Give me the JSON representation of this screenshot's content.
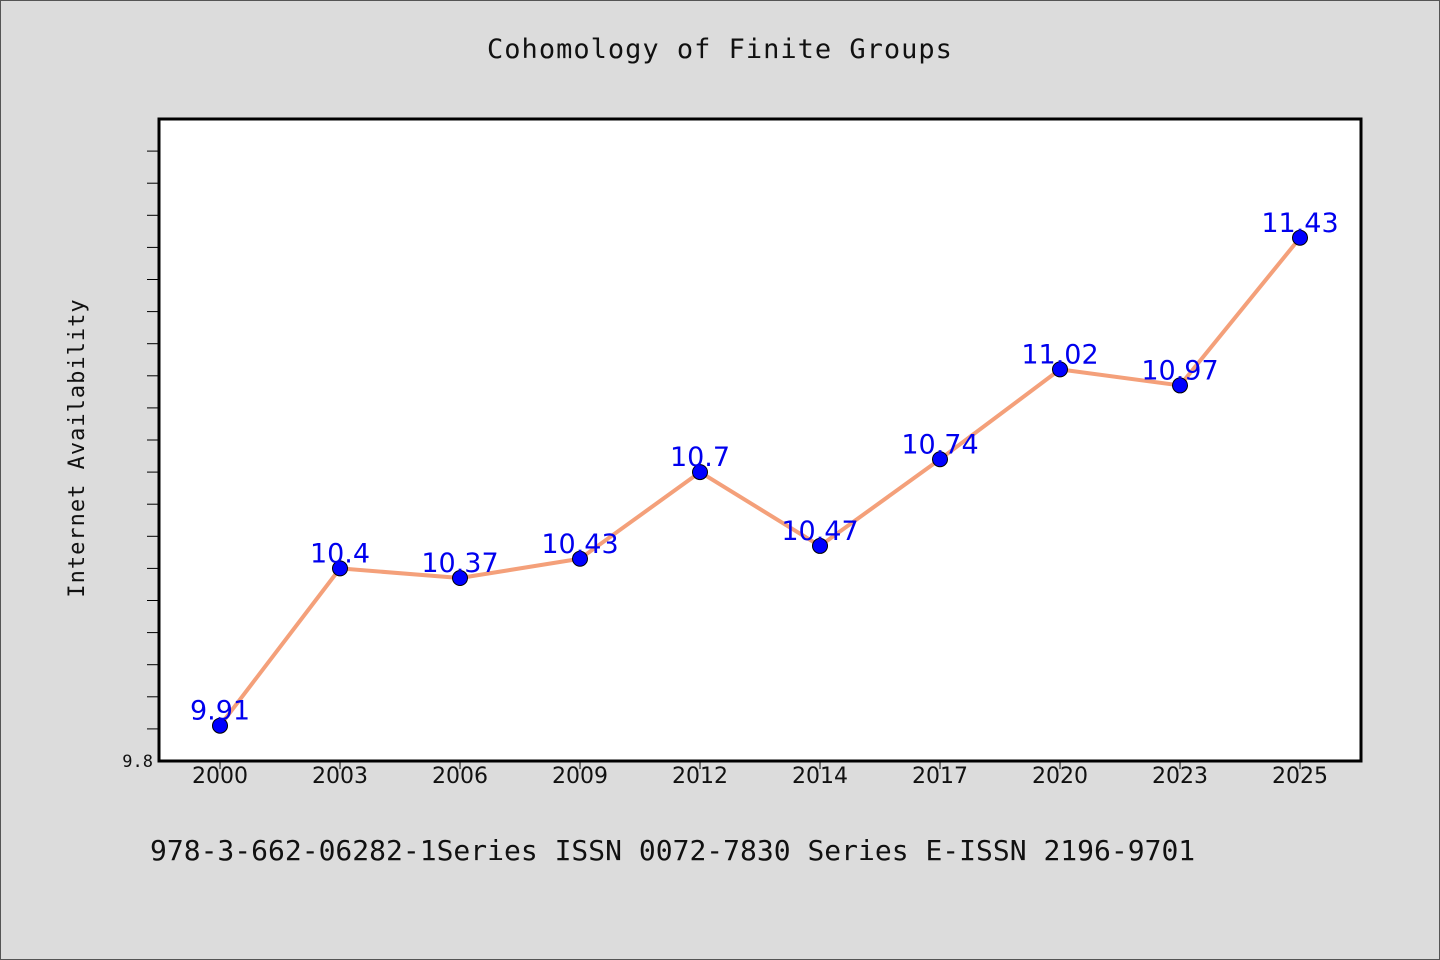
{
  "chart_data": {
    "type": "line",
    "title": "Cohomology of Finite Groups",
    "xlabel": "",
    "ylabel": "Internet Availability",
    "categories": [
      "2000",
      "2003",
      "2006",
      "2009",
      "2012",
      "2014",
      "2017",
      "2020",
      "2023",
      "2025"
    ],
    "series": [
      {
        "values": [
          9.91,
          10.4,
          10.37,
          10.43,
          10.7,
          10.47,
          10.74,
          11.02,
          10.97,
          11.43
        ],
        "labels": [
          "9.91",
          "10.4",
          "10.37",
          "10.43",
          "10.7",
          "10.47",
          "10.74",
          "11.02",
          "10.97",
          "11.43"
        ]
      }
    ],
    "ylim": [
      9.8,
      11.8
    ],
    "ytick_labels": [
      "9.8"
    ],
    "grid": false,
    "line_color": "#f4a07a",
    "marker_color": "#0000ff",
    "label_color": "#0000ee"
  },
  "footnote": "978-3-662-06282-1Series ISSN 0072-7830 Series E-ISSN 2196-9701"
}
